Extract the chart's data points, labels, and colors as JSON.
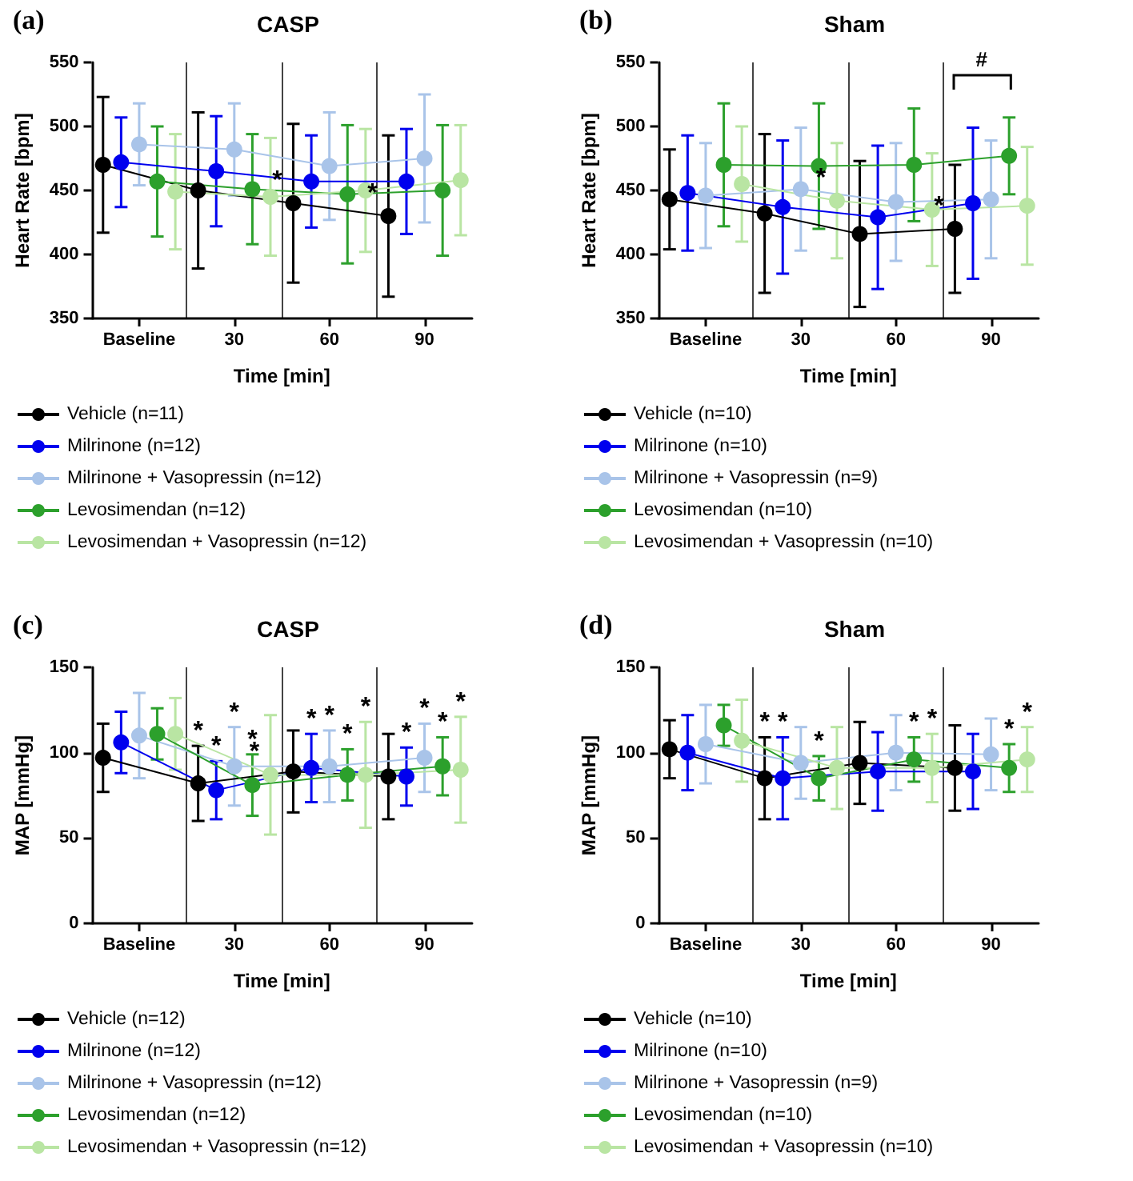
{
  "chart_data": [
    {
      "type": "line",
      "title": "CASP",
      "annotations": [
        "(a)"
      ],
      "xlabel": "Time [min]",
      "ylabel": "Heart Rate [bpm]",
      "categories": [
        "Baseline",
        "30",
        "60",
        "90"
      ],
      "ylim": [
        350,
        550
      ],
      "yticks": [
        350,
        400,
        450,
        500,
        550
      ],
      "grid": "x",
      "legend": "bottom",
      "marker": "circle",
      "line_style": "solid",
      "series": [
        {
          "name": "Vehicle (n=11)",
          "color": "#000000",
          "values": [
            470,
            450,
            440,
            430
          ],
          "errors": [
            53,
            61,
            62,
            63
          ],
          "value_labels": [
            null,
            null,
            "*",
            "*"
          ]
        },
        {
          "name": "Milrinone (n=12)",
          "color": "#0000ee",
          "values": [
            472,
            465,
            457,
            457
          ],
          "errors": [
            35,
            43,
            36,
            41
          ]
        },
        {
          "name": "Milrinone + Vasopressin (n=12)",
          "color": "#a9c4e9",
          "values": [
            486,
            482,
            469,
            475
          ],
          "errors": [
            32,
            36,
            42,
            50
          ]
        },
        {
          "name": "Levosimendan (n=12)",
          "color": "#2ca02c",
          "values": [
            457,
            451,
            447,
            450
          ],
          "errors": [
            43,
            43,
            54,
            51
          ]
        },
        {
          "name": "Levosimendan + Vasopressin (n=12)",
          "color": "#b9e5a3",
          "values": [
            449,
            445,
            450,
            458
          ],
          "errors": [
            45,
            46,
            48,
            43
          ]
        }
      ]
    },
    {
      "type": "line",
      "title": "Sham",
      "annotations": [
        "(b)",
        "#"
      ],
      "xlabel": "Time [min]",
      "ylabel": "Heart Rate [bpm]",
      "categories": [
        "Baseline",
        "30",
        "60",
        "90"
      ],
      "ylim": [
        350,
        550
      ],
      "yticks": [
        350,
        400,
        450,
        500,
        550
      ],
      "grid": "x",
      "legend": "bottom",
      "marker": "circle",
      "line_style": "solid",
      "series": [
        {
          "name": "Vehicle (n=10)",
          "color": "#000000",
          "values": [
            443,
            432,
            416,
            420
          ],
          "errors": [
            39,
            62,
            57,
            50
          ],
          "value_labels": [
            null,
            null,
            null,
            "*"
          ]
        },
        {
          "name": "Milrinone (n=10)",
          "color": "#0000ee",
          "values": [
            448,
            437,
            429,
            440
          ],
          "errors": [
            45,
            52,
            56,
            59
          ]
        },
        {
          "name": "Milrinone + Vasopressin (n=9)",
          "color": "#a9c4e9",
          "values": [
            446,
            451,
            441,
            443
          ],
          "errors": [
            41,
            48,
            46,
            46
          ]
        },
        {
          "name": "Levosimendan (n=10)",
          "color": "#2ca02c",
          "values": [
            470,
            469,
            470,
            477
          ],
          "errors": [
            48,
            49,
            44,
            30
          ]
        },
        {
          "name": "Levosimendan + Vasopressin (n=10)",
          "color": "#b9e5a3",
          "values": [
            455,
            442,
            435,
            438
          ],
          "errors": [
            45,
            45,
            44,
            46
          ],
          "value_labels": [
            null,
            "*",
            null,
            null
          ]
        }
      ]
    },
    {
      "type": "line",
      "title": "CASP",
      "annotations": [
        "(c)"
      ],
      "xlabel": "Time [min]",
      "ylabel": "MAP [mmHg]",
      "categories": [
        "Baseline",
        "30",
        "60",
        "90"
      ],
      "ylim": [
        0,
        150
      ],
      "yticks": [
        0,
        50,
        100,
        150
      ],
      "grid": "x",
      "legend": "bottom",
      "marker": "circle",
      "line_style": "solid",
      "series": [
        {
          "name": "Vehicle (n=12)",
          "color": "#000000",
          "values": [
            97,
            82,
            89,
            86
          ],
          "errors": [
            20,
            22,
            24,
            25
          ],
          "value_labels": [
            null,
            "*",
            null,
            null
          ]
        },
        {
          "name": "Milrinone (n=12)",
          "color": "#0000ee",
          "values": [
            106,
            78,
            91,
            86
          ],
          "errors": [
            18,
            17,
            20,
            17
          ],
          "value_labels": [
            null,
            "*",
            "*",
            "*"
          ]
        },
        {
          "name": "Milrinone + Vasopressin (n=12)",
          "color": "#a9c4e9",
          "values": [
            110,
            92,
            92,
            97
          ],
          "errors": [
            25,
            23,
            21,
            20
          ],
          "value_labels": [
            null,
            "*",
            "*",
            "*"
          ]
        },
        {
          "name": "Levosimendan (n=12)",
          "color": "#2ca02c",
          "values": [
            111,
            81,
            87,
            92
          ],
          "errors": [
            15,
            18,
            15,
            17
          ],
          "value_labels": [
            null,
            "*",
            "*",
            "*"
          ]
        },
        {
          "name": "Levosimendan + Vasopressin (n=12)",
          "color": "#b9e5a3",
          "values": [
            111,
            87,
            87,
            90
          ],
          "errors": [
            21,
            35,
            31,
            31
          ],
          "value_labels": [
            null,
            "*",
            "*",
            "*"
          ]
        }
      ]
    },
    {
      "type": "line",
      "title": "Sham",
      "annotations": [
        "(d)"
      ],
      "xlabel": "Time [min]",
      "ylabel": "MAP [mmHg]",
      "categories": [
        "Baseline",
        "30",
        "60",
        "90"
      ],
      "ylim": [
        0,
        150
      ],
      "yticks": [
        0,
        50,
        100,
        150
      ],
      "grid": "x",
      "legend": "bottom",
      "marker": "circle",
      "line_style": "solid",
      "series": [
        {
          "name": "Vehicle (n=10)",
          "color": "#000000",
          "values": [
            102,
            85,
            94,
            91
          ],
          "errors": [
            17,
            24,
            24,
            25
          ],
          "value_labels": [
            null,
            "*",
            null,
            null
          ]
        },
        {
          "name": "Milrinone (n=10)",
          "color": "#0000ee",
          "values": [
            100,
            85,
            89,
            89
          ],
          "errors": [
            22,
            24,
            23,
            22
          ],
          "value_labels": [
            null,
            "*",
            null,
            null
          ]
        },
        {
          "name": "Milrinone + Vasopressin (n=9)",
          "color": "#a9c4e9",
          "values": [
            105,
            94,
            100,
            99
          ],
          "errors": [
            23,
            21,
            22,
            21
          ]
        },
        {
          "name": "Levosimendan (n=10)",
          "color": "#2ca02c",
          "values": [
            116,
            85,
            96,
            91
          ],
          "errors": [
            12,
            13,
            13,
            14
          ],
          "value_labels": [
            null,
            "*",
            "*",
            "*"
          ]
        },
        {
          "name": "Levosimendan + Vasopressin (n=10)",
          "color": "#b9e5a3",
          "values": [
            107,
            91,
            91,
            96
          ],
          "errors": [
            24,
            24,
            20,
            19
          ],
          "value_labels": [
            null,
            null,
            "*",
            "*"
          ]
        }
      ]
    }
  ]
}
